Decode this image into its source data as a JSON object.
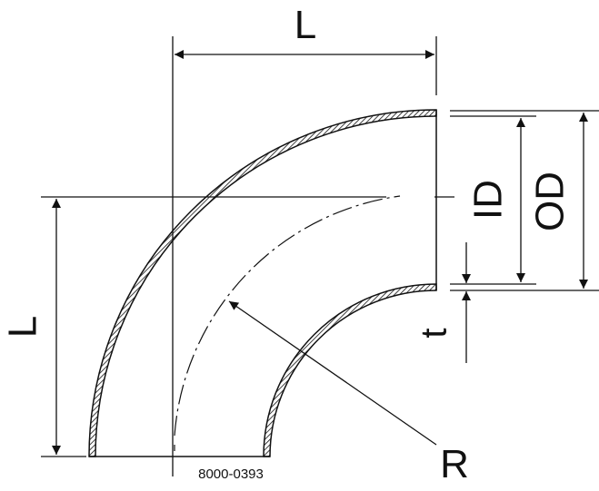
{
  "labels": {
    "length_top": "L",
    "length_left": "L",
    "inner_diameter": "ID",
    "outer_diameter": "OD",
    "wall_thickness": "t",
    "radius": "R",
    "drawing_number": "8000-0393"
  },
  "colors": {
    "line": "#111111",
    "background": "#ffffff"
  }
}
